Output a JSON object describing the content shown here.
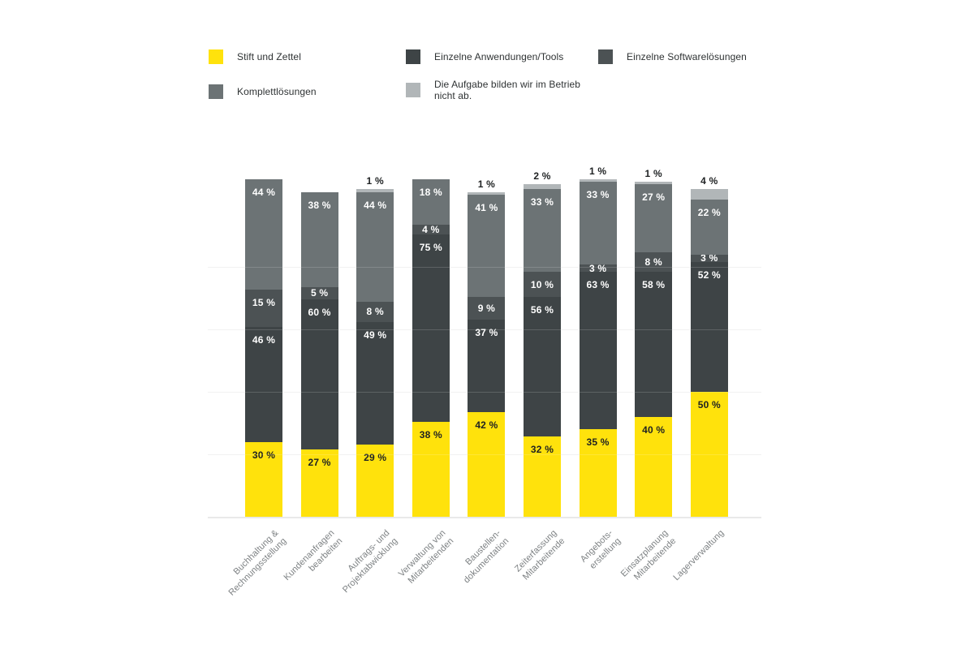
{
  "chart_data": {
    "type": "bar",
    "stacked": true,
    "value_suffix": " %",
    "title": "",
    "xlabel": "",
    "ylabel": "",
    "ylim": [
      0,
      140
    ],
    "grid": true,
    "grid_interval_pct": 25,
    "legend_position": "top",
    "categories": [
      "Buchhaltung &\nRechnungsstellung",
      "Kundenanfragen\nbearbeiten",
      "Auftrags- und\nProjektabwicklung",
      "Verwaltung von\nMitarbeitenden",
      "Baustellen-\ndokumentation",
      "Zeiterfassung\nMitarbeitende",
      "Angebots-\nerstellung",
      "Einsatzplanung\nMitarbeitende",
      "Lagerverwaltung"
    ],
    "series": [
      {
        "name": "Stift und Zettel",
        "color": "#ffe20c",
        "label_color": "#1e2122",
        "label_outside": false,
        "values": [
          30,
          27,
          29,
          38,
          42,
          32,
          35,
          40,
          50
        ]
      },
      {
        "name": "Einzelne Anwendungen/Tools",
        "color": "#3e4446",
        "label_color": "#ffffff",
        "label_outside": false,
        "values": [
          46,
          60,
          49,
          75,
          37,
          56,
          63,
          58,
          52
        ]
      },
      {
        "name": "Einzelne Softwarelösungen",
        "color": "#4c5254",
        "label_color": "#ffffff",
        "label_outside": false,
        "values": [
          15,
          5,
          8,
          4,
          9,
          10,
          3,
          8,
          3
        ]
      },
      {
        "name": "Komplettlösungen",
        "color": "#6c7375",
        "label_color": "#ffffff",
        "label_outside": false,
        "values": [
          44,
          38,
          44,
          18,
          41,
          33,
          33,
          27,
          22
        ]
      },
      {
        "name": "Die Aufgabe bilden wir im Betrieb\nnicht ab.",
        "color": "#b1b6b8",
        "label_color": "#1e2122",
        "label_outside": true,
        "values": [
          0,
          0,
          1,
          0,
          1,
          2,
          1,
          1,
          4
        ]
      }
    ],
    "legend_rows": [
      [
        0,
        1,
        2
      ],
      [
        3,
        4
      ]
    ]
  },
  "colors": {
    "background": "#ffffff",
    "baseline": "#e9e9e9",
    "gridline": "#f0f0f0",
    "legend_text": "#2e3233",
    "axis_text": "#7d8183"
  }
}
